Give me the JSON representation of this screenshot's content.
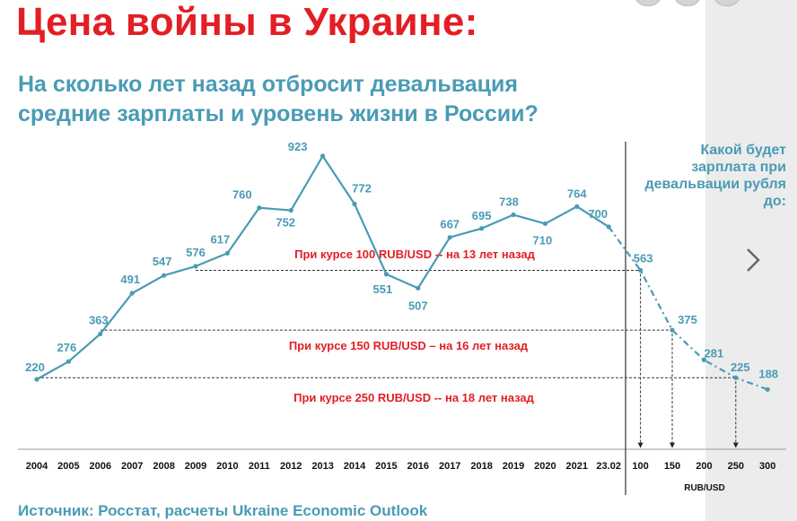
{
  "header": {
    "title": "Цена войны в Украине:",
    "subtitle_lines": [
      "На сколько лет назад отбросит девальвация",
      "средние зарплаты и уровень жизни в России?"
    ]
  },
  "side_question": "Какой будет зарплата при девальвации рубля до:",
  "source": "Источник: Росстат, расчеты Ukraine Economic Outlook",
  "colors": {
    "title": "#e31e24",
    "accent": "#4a9bb5",
    "annotation": "#e31e24",
    "line": "#4a9bb5"
  },
  "icons": {
    "next": "chevron-right-icon"
  },
  "chart_data": {
    "type": "line",
    "title": "",
    "xlabel": "",
    "ylabel": "",
    "grid": false,
    "x_labels": [
      "2004",
      "2005",
      "2006",
      "2007",
      "2008",
      "2009",
      "2010",
      "2011",
      "2012",
      "2013",
      "2014",
      "2015",
      "2016",
      "2017",
      "2018",
      "2019",
      "2020",
      "2021",
      "23.02",
      "100",
      "150",
      "200",
      "250",
      "300"
    ],
    "series": [
      {
        "style": "solid",
        "x": [
          "2004",
          "2005",
          "2006",
          "2007",
          "2008",
          "2009",
          "2010",
          "2011",
          "2012",
          "2013",
          "2014",
          "2015",
          "2016",
          "2017",
          "2018",
          "2019",
          "2020",
          "2021",
          "23.02"
        ],
        "values": [
          220,
          276,
          363,
          491,
          547,
          576,
          617,
          760,
          752,
          923,
          772,
          551,
          507,
          667,
          695,
          738,
          710,
          764,
          700
        ]
      },
      {
        "style": "dashed",
        "x": [
          "23.02",
          "100",
          "150",
          "200",
          "250",
          "300"
        ],
        "values": [
          700,
          563,
          375,
          281,
          225,
          188
        ]
      }
    ],
    "secondary_axis_label": "RUB/USD",
    "annotations": [
      {
        "text": "При курсе 100 RUB/USD -- на 13 лет назад",
        "value": 563,
        "rate": "100",
        "from": "2009"
      },
      {
        "text": "При курсе 150 RUB/USD – на 16 лет назад",
        "value": 375,
        "rate": "150",
        "from": "2006"
      },
      {
        "text": "При курсе 250 RUB/USD --  на 18 лет назад",
        "value": 225,
        "rate": "250",
        "from": "2004"
      }
    ]
  }
}
